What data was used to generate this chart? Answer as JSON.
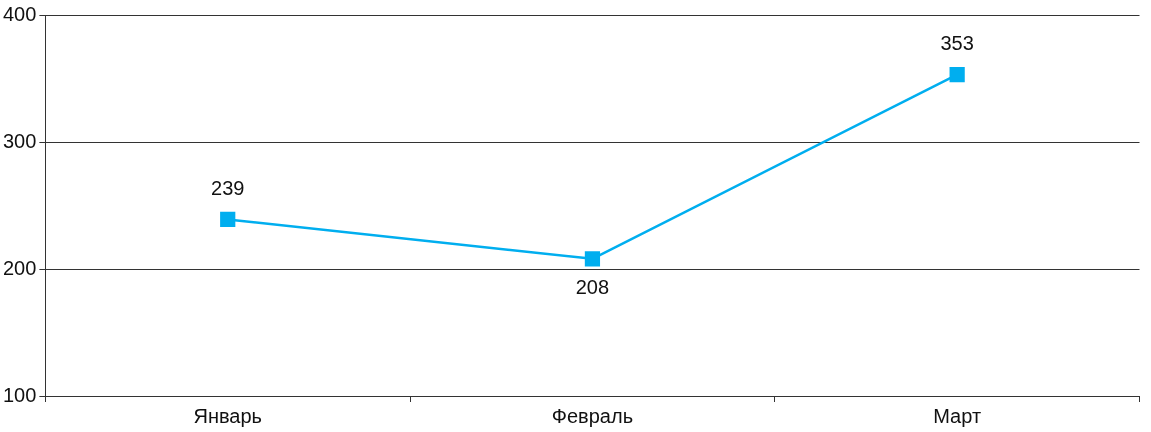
{
  "chart_data": {
    "type": "line",
    "categories": [
      "Январь",
      "Февраль",
      "Март"
    ],
    "series": [
      {
        "color": "#00aeef",
        "values": [
          239,
          208,
          353
        ]
      }
    ],
    "ylim": [
      100,
      400
    ],
    "yticks": [
      100,
      200,
      300,
      400
    ],
    "grid": "y",
    "legend": false,
    "marker": "square",
    "line_style": "solid",
    "data_labels": true
  }
}
